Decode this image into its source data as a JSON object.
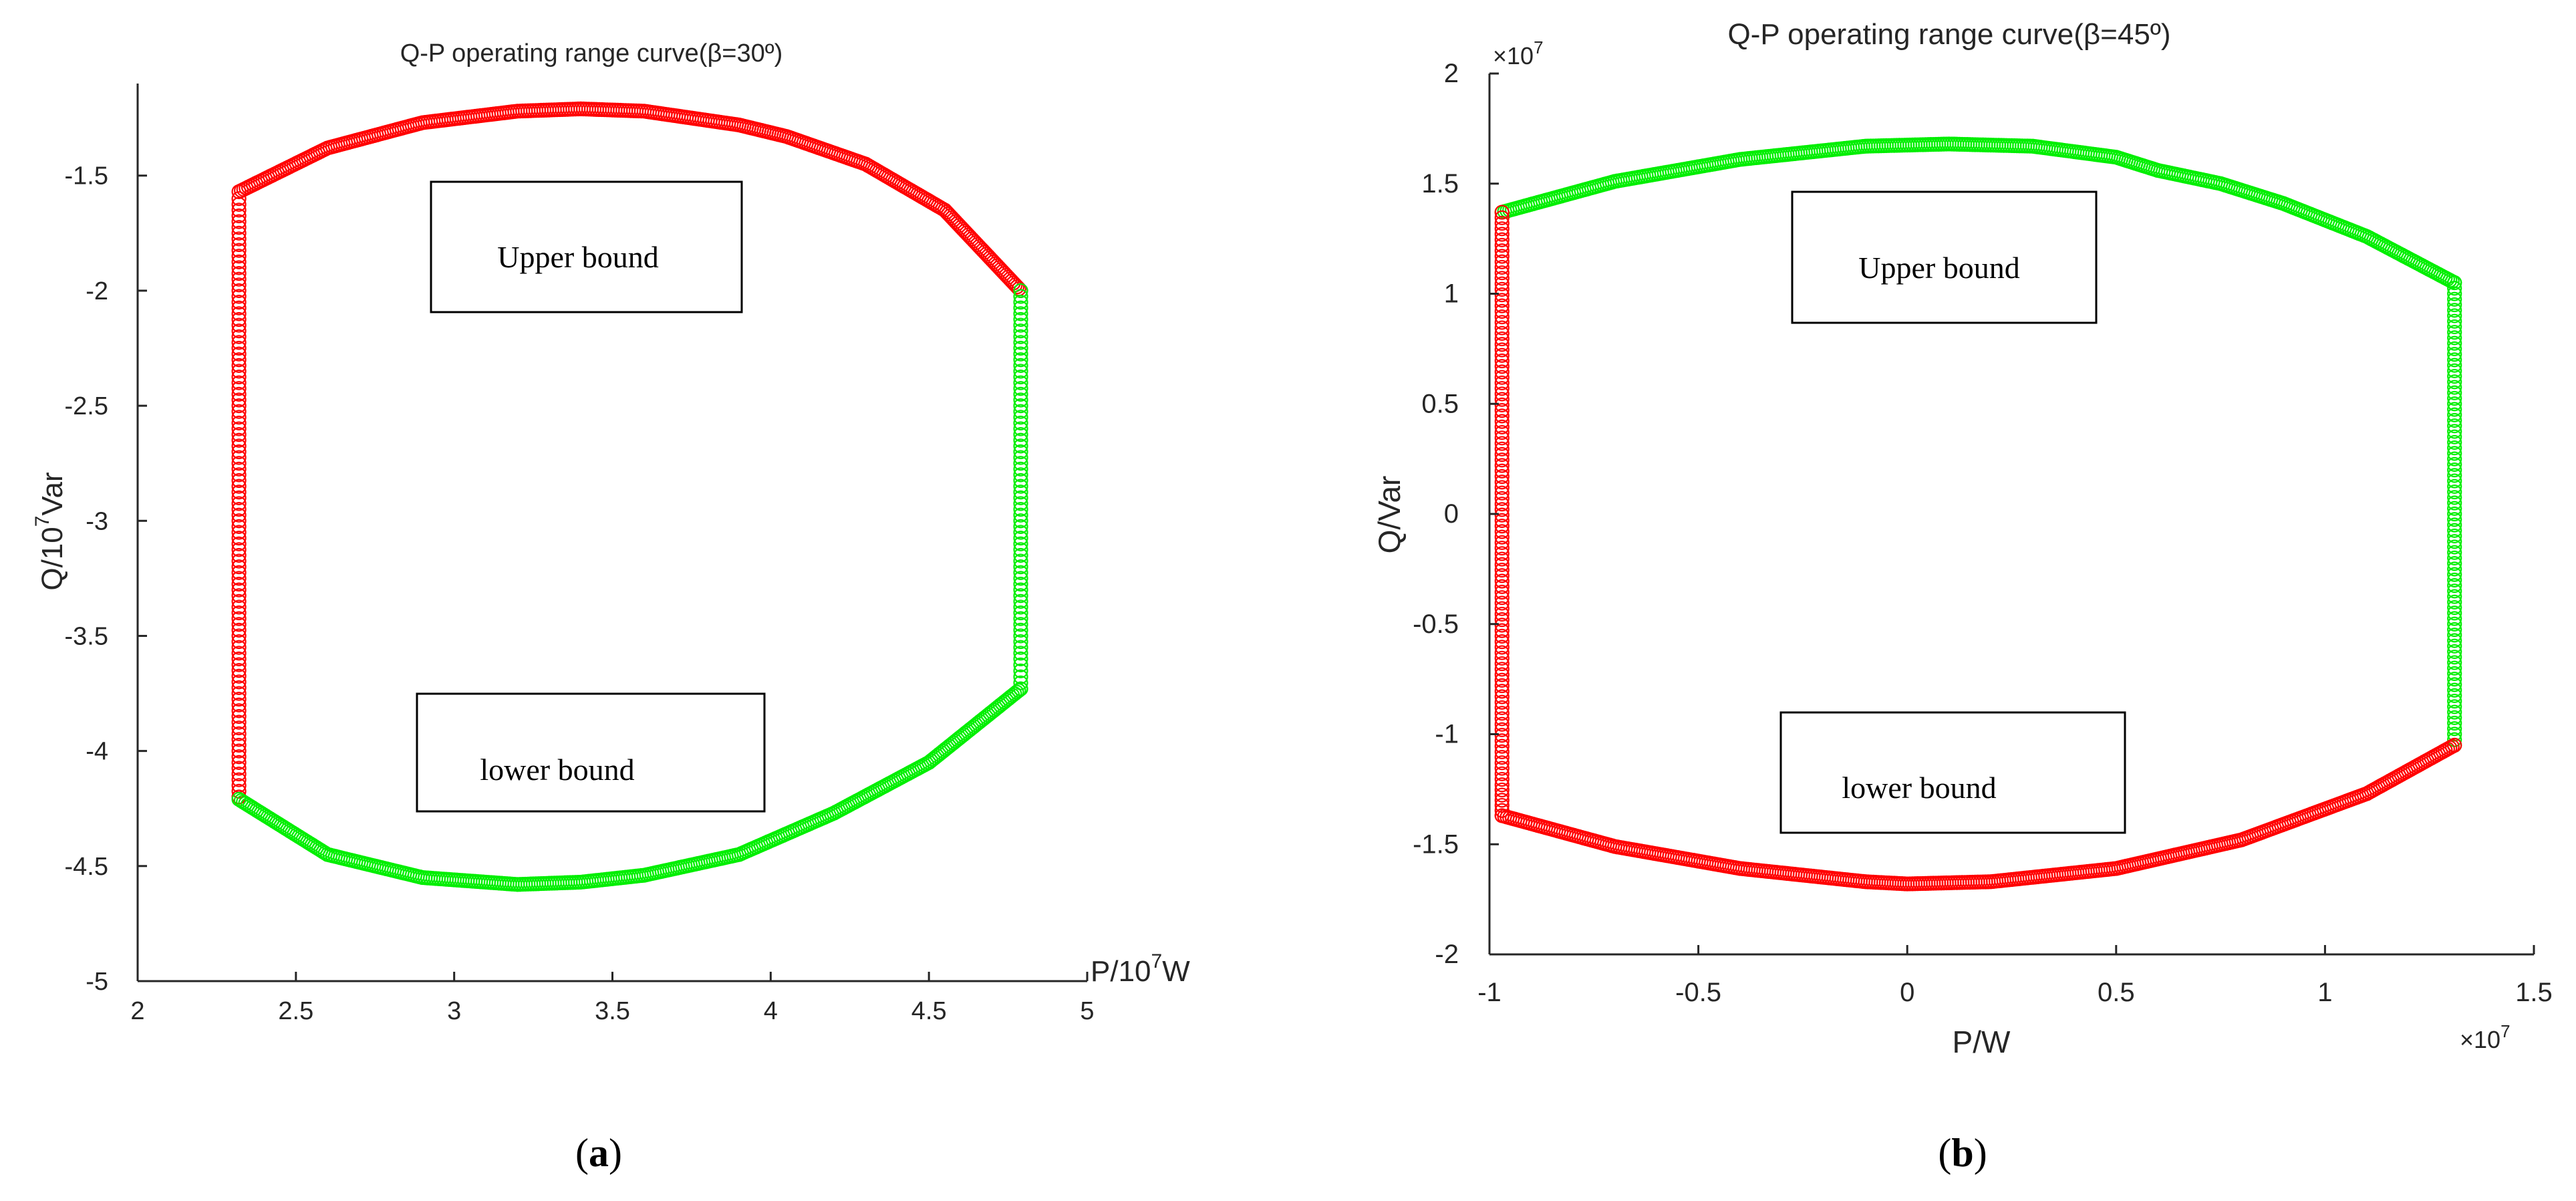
{
  "chart_data": [
    {
      "panel": "a",
      "type": "scatter",
      "title": "Q-P operating range curve(β=30º)",
      "xlabel": "P/10",
      "xlabel_sup": "7",
      "xlabel_unit": "W",
      "ylabel": "Q/10",
      "ylabel_sup": "7",
      "ylabel_unit": "Var",
      "xlim": [
        2,
        5
      ],
      "ylim": [
        -5,
        -1.1
      ],
      "xticks": [
        "2",
        "2.5",
        "3",
        "3.5",
        "4",
        "4.5",
        "5"
      ],
      "yticks": [
        "-5",
        "-4.5",
        "-4",
        "-3.5",
        "-3",
        "-2.5",
        "-2",
        "-1.5"
      ],
      "grid": false,
      "annotations": [
        "Upper bound",
        "lower bound"
      ],
      "caption_letter": "a",
      "series": [
        {
          "color": "#ff0000",
          "segment": "upper-arc",
          "x": [
            2.32,
            2.6,
            2.9,
            3.2,
            3.4,
            3.6,
            3.9,
            4.05,
            4.3,
            4.55,
            4.79
          ],
          "y": [
            -1.57,
            -1.38,
            -1.27,
            -1.22,
            -1.21,
            -1.22,
            -1.28,
            -1.33,
            -1.45,
            -1.65,
            -2.0
          ]
        },
        {
          "color": "#ff0000",
          "segment": "left-edge",
          "x": [
            2.32,
            2.32,
            2.32,
            2.32,
            2.32,
            2.32,
            2.32,
            2.32,
            2.32,
            2.32,
            2.32,
            2.32,
            2.32,
            2.32,
            2.32,
            2.32,
            2.32,
            2.32,
            2.32,
            2.32,
            2.32,
            2.32,
            2.32,
            2.32,
            2.32,
            2.32,
            2.32
          ],
          "y": [
            -1.6,
            -1.7,
            -1.8,
            -1.9,
            -2.0,
            -2.1,
            -2.2,
            -2.3,
            -2.4,
            -2.5,
            -2.6,
            -2.7,
            -2.8,
            -2.9,
            -3.0,
            -3.1,
            -3.2,
            -3.3,
            -3.4,
            -3.5,
            -3.6,
            -3.7,
            -3.8,
            -3.9,
            -4.0,
            -4.1,
            -4.2
          ]
        },
        {
          "color": "#00ee00",
          "segment": "right-edge",
          "x": [
            4.79,
            4.79,
            4.79,
            4.79,
            4.79,
            4.79,
            4.79,
            4.79,
            4.79,
            4.79,
            4.79,
            4.79,
            4.79,
            4.79,
            4.79,
            4.79,
            4.79,
            4.79
          ],
          "y": [
            -2.0,
            -2.1,
            -2.2,
            -2.3,
            -2.4,
            -2.5,
            -2.6,
            -2.7,
            -2.8,
            -2.9,
            -3.0,
            -3.1,
            -3.2,
            -3.3,
            -3.4,
            -3.5,
            -3.6,
            -3.73
          ]
        },
        {
          "color": "#00ee00",
          "segment": "lower-arc",
          "x": [
            2.32,
            2.6,
            2.9,
            3.2,
            3.4,
            3.6,
            3.9,
            4.2,
            4.5,
            4.79
          ],
          "y": [
            -4.21,
            -4.45,
            -4.55,
            -4.58,
            -4.57,
            -4.54,
            -4.45,
            -4.27,
            -4.05,
            -3.73
          ]
        }
      ]
    },
    {
      "panel": "b",
      "type": "scatter",
      "title": "Q-P operating range curve(β=45º)",
      "xlabel": "P/W",
      "ylabel": "Q/Var",
      "x_multiplier": "×10",
      "x_multiplier_sup": "7",
      "y_multiplier": "×10",
      "y_multiplier_sup": "7",
      "xlim": [
        -1,
        1.5
      ],
      "ylim": [
        -2,
        2
      ],
      "xticks": [
        "-1",
        "-0.5",
        "0",
        "0.5",
        "1",
        "1.5"
      ],
      "yticks": [
        "-2",
        "-1.5",
        "-1",
        "-0.5",
        "0",
        "0.5",
        "1",
        "1.5",
        "2"
      ],
      "grid": false,
      "annotations": [
        "Upper bound",
        "lower bound"
      ],
      "caption_letter": "b",
      "series": [
        {
          "color": "#00ee00",
          "segment": "upper-arc",
          "x": [
            -0.97,
            -0.7,
            -0.4,
            -0.1,
            0.1,
            0.3,
            0.5,
            0.6,
            0.75,
            0.9,
            1.1,
            1.31
          ],
          "y": [
            1.37,
            1.51,
            1.61,
            1.67,
            1.68,
            1.67,
            1.62,
            1.56,
            1.5,
            1.41,
            1.26,
            1.05
          ]
        },
        {
          "color": "#00ee00",
          "segment": "right-edge",
          "x": [
            1.31,
            1.31,
            1.31,
            1.31,
            1.31,
            1.31,
            1.31,
            1.31,
            1.31,
            1.31,
            1.31,
            1.31,
            1.31,
            1.31,
            1.31,
            1.31,
            1.31,
            1.31,
            1.31,
            1.31,
            1.31,
            1.31
          ],
          "y": [
            1.05,
            0.95,
            0.85,
            0.75,
            0.65,
            0.55,
            0.45,
            0.35,
            0.25,
            0.15,
            0.05,
            -0.05,
            -0.15,
            -0.25,
            -0.35,
            -0.45,
            -0.55,
            -0.65,
            -0.75,
            -0.85,
            -0.95,
            -1.05
          ]
        },
        {
          "color": "#ff0000",
          "segment": "left-edge",
          "x": [
            -0.97,
            -0.97,
            -0.97,
            -0.97,
            -0.97,
            -0.97,
            -0.97,
            -0.97,
            -0.97,
            -0.97,
            -0.97,
            -0.97,
            -0.97,
            -0.97,
            -0.97,
            -0.97,
            -0.97,
            -0.97,
            -0.97,
            -0.97,
            -0.97,
            -0.97,
            -0.97,
            -0.97,
            -0.97,
            -0.97,
            -0.97,
            -0.97
          ],
          "y": [
            1.37,
            1.27,
            1.17,
            1.07,
            0.97,
            0.87,
            0.77,
            0.67,
            0.57,
            0.47,
            0.37,
            0.27,
            0.17,
            0.07,
            -0.03,
            -0.13,
            -0.23,
            -0.33,
            -0.43,
            -0.53,
            -0.63,
            -0.73,
            -0.83,
            -0.93,
            -1.03,
            -1.13,
            -1.23,
            -1.37
          ]
        },
        {
          "color": "#ff0000",
          "segment": "lower-arc",
          "x": [
            -0.97,
            -0.7,
            -0.4,
            -0.1,
            0.0,
            0.2,
            0.5,
            0.8,
            1.1,
            1.31
          ],
          "y": [
            -1.37,
            -1.51,
            -1.61,
            -1.67,
            -1.68,
            -1.67,
            -1.61,
            -1.48,
            -1.27,
            -1.05
          ]
        }
      ]
    }
  ]
}
